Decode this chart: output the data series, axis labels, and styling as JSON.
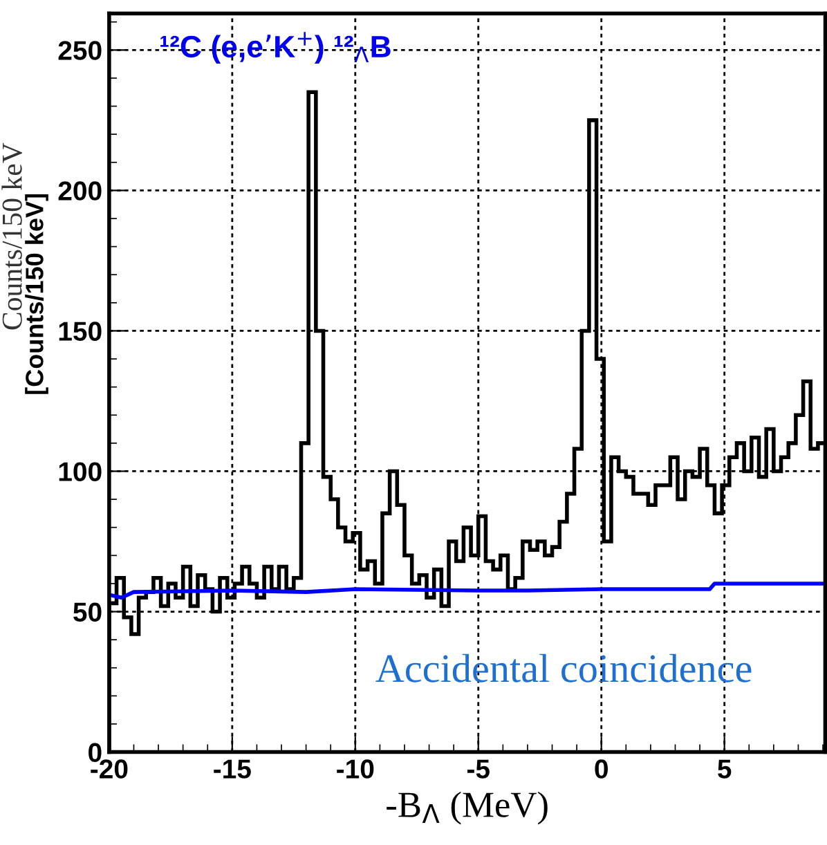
{
  "chart_data": {
    "type": "histogram",
    "title": "¹²C (e,e’K$^{+}$) ¹²$_{Λ}$B",
    "xlabel": "-B$_{Λ}$ (MeV)",
    "ylabel": "[Counts/150 keV]",
    "annotations": [
      "Counts/150 keV",
      "Accidental coincidence"
    ],
    "bins": [
      -20,
      -19.7,
      -19.4,
      -19.1,
      -18.8,
      -18.5,
      -18.2,
      -17.9,
      -17.6,
      -17.3,
      -17,
      -16.7,
      -16.4,
      -16.1,
      -15.8,
      -15.5,
      -15.2,
      -14.9,
      -14.6,
      -14.3,
      -14,
      -13.7,
      -13.4,
      -13.1,
      -12.8,
      -12.5,
      -12.2,
      -11.9,
      -11.6,
      -11.3,
      -11,
      -10.7,
      -10.4,
      -10.1,
      -9.8,
      -9.5,
      -9.2,
      -8.9,
      -8.6,
      -8.3,
      -8,
      -7.7,
      -7.4,
      -7.1,
      -6.8,
      -6.5,
      -6.2,
      -5.9,
      -5.6,
      -5.3,
      -5,
      -4.7,
      -4.4,
      -4.1,
      -3.8,
      -3.5,
      -3.2,
      -2.9,
      -2.6,
      -2.3,
      -2,
      -1.7,
      -1.4,
      -1.1,
      -0.8,
      -0.5,
      -0.2,
      0.1,
      0.4,
      0.7,
      1,
      1.3,
      1.6,
      1.9,
      2.2,
      2.5,
      2.8,
      3.1,
      3.4,
      3.7,
      4,
      4.3,
      4.6,
      4.9,
      5.2,
      5.5,
      5.8,
      6.1,
      6.4,
      6.7,
      7,
      7.3,
      7.6,
      7.9,
      8.2,
      8.5,
      8.8,
      9.1
    ],
    "series": [
      {
        "color": "#000000",
        "values": [
          53,
          62,
          48,
          42,
          55,
          57,
          62,
          52,
          60,
          55,
          66,
          52,
          63,
          58,
          50,
          62,
          55,
          60,
          66,
          60,
          55,
          66,
          58,
          66,
          58,
          62,
          110,
          235,
          150,
          98,
          90,
          80,
          75,
          78,
          65,
          68,
          60,
          85,
          100,
          88,
          70,
          60,
          63,
          55,
          65,
          52,
          75,
          68,
          80,
          70,
          84,
          68,
          65,
          70,
          58,
          62,
          75,
          72,
          75,
          70,
          73,
          82,
          92,
          108,
          150,
          225,
          140,
          75,
          105,
          100,
          98,
          92,
          92,
          88,
          95,
          95,
          105,
          90,
          100,
          98,
          108,
          95,
          85,
          95,
          105,
          110,
          100,
          112,
          98,
          115,
          100,
          105,
          110,
          120,
          132,
          108,
          110
        ]
      },
      {
        "type": "line",
        "color": "#0000ff",
        "x": [
          -20,
          -19.5,
          -19,
          -15,
          -12,
          -10,
          -5,
          -3,
          0,
          4.4,
          4.6,
          7,
          9.1
        ],
        "values": [
          56,
          55,
          57,
          57.5,
          57,
          58,
          57.5,
          57.5,
          58,
          58,
          60,
          60,
          60
        ]
      }
    ],
    "xlim": [
      -20,
      9.1
    ],
    "ylim": [
      0,
      263
    ],
    "xticks": [
      -20,
      -15,
      -10,
      -5,
      0,
      5
    ],
    "yticks": [
      0,
      50,
      100,
      150,
      200,
      250
    ],
    "grid": true
  }
}
